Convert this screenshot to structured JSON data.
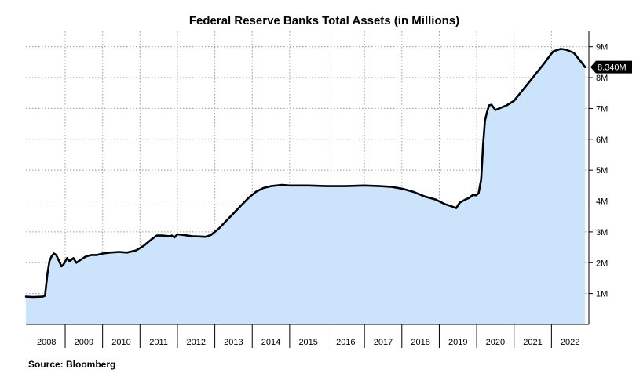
{
  "chart_data": {
    "type": "area",
    "title": "Federal Reserve Banks Total Assets (in Millions)",
    "source": "Source: Bloomberg",
    "x_tick_labels": [
      "2008",
      "2009",
      "2010",
      "2011",
      "2012",
      "2013",
      "2014",
      "2015",
      "2016",
      "2017",
      "2018",
      "2019",
      "2020",
      "2021",
      "2022"
    ],
    "y_tick_labels": [
      "1M",
      "2M",
      "3M",
      "4M",
      "5M",
      "6M",
      "7M",
      "8M",
      "9M"
    ],
    "y_ticks": [
      1,
      2,
      3,
      4,
      5,
      6,
      7,
      8,
      9
    ],
    "xlim": [
      2007.95,
      2023.0
    ],
    "ylim": [
      0,
      9.5
    ],
    "y_axis_side": "right",
    "grid": true,
    "last_value_label": "8.340M",
    "colors": {
      "line": "#000000",
      "fill": "#cce4fb",
      "grid": "#999999",
      "tag_bg": "#000000",
      "tag_text": "#ffffff"
    },
    "series": [
      {
        "x": [
          2007.95,
          2008.15,
          2008.4,
          2008.46,
          2008.52,
          2008.58,
          2008.64,
          2008.7,
          2008.76,
          2008.82,
          2008.9,
          2008.96,
          2009.05,
          2009.12,
          2009.22,
          2009.3,
          2009.42,
          2009.55,
          2009.7,
          2009.85,
          2010.0,
          2010.2,
          2010.45,
          2010.65,
          2010.8,
          2010.9,
          2011.1,
          2011.3,
          2011.45,
          2011.6,
          2011.78,
          2011.85,
          2011.92,
          2012.0,
          2012.15,
          2012.4,
          2012.6,
          2012.75,
          2012.9,
          2013.1,
          2013.3,
          2013.5,
          2013.7,
          2013.9,
          2014.1,
          2014.3,
          2014.5,
          2014.8,
          2015.0,
          2015.5,
          2016.0,
          2016.5,
          2017.0,
          2017.4,
          2017.7,
          2018.0,
          2018.3,
          2018.6,
          2018.9,
          2019.15,
          2019.3,
          2019.45,
          2019.55,
          2019.7,
          2019.8,
          2019.9,
          2019.98,
          2020.05,
          2020.12,
          2020.17,
          2020.22,
          2020.27,
          2020.33,
          2020.4,
          2020.5,
          2020.6,
          2020.8,
          2021.0,
          2021.2,
          2021.4,
          2021.6,
          2021.8,
          2021.95,
          2022.05,
          2022.25,
          2022.4,
          2022.6,
          2022.8,
          2022.9
        ],
        "values": [
          0.9,
          0.89,
          0.9,
          0.93,
          1.6,
          2.05,
          2.22,
          2.3,
          2.25,
          2.1,
          1.88,
          1.95,
          2.15,
          2.05,
          2.15,
          2.0,
          2.1,
          2.2,
          2.25,
          2.25,
          2.3,
          2.33,
          2.35,
          2.33,
          2.37,
          2.4,
          2.55,
          2.75,
          2.88,
          2.88,
          2.86,
          2.88,
          2.82,
          2.92,
          2.9,
          2.86,
          2.85,
          2.84,
          2.9,
          3.1,
          3.35,
          3.6,
          3.85,
          4.1,
          4.3,
          4.42,
          4.48,
          4.52,
          4.5,
          4.5,
          4.48,
          4.48,
          4.5,
          4.48,
          4.46,
          4.4,
          4.3,
          4.15,
          4.05,
          3.9,
          3.84,
          3.77,
          3.95,
          4.05,
          4.1,
          4.2,
          4.18,
          4.25,
          4.7,
          5.8,
          6.6,
          6.85,
          7.1,
          7.12,
          6.95,
          7.0,
          7.1,
          7.25,
          7.55,
          7.85,
          8.15,
          8.45,
          8.7,
          8.85,
          8.93,
          8.9,
          8.8,
          8.5,
          8.34
        ]
      }
    ]
  }
}
